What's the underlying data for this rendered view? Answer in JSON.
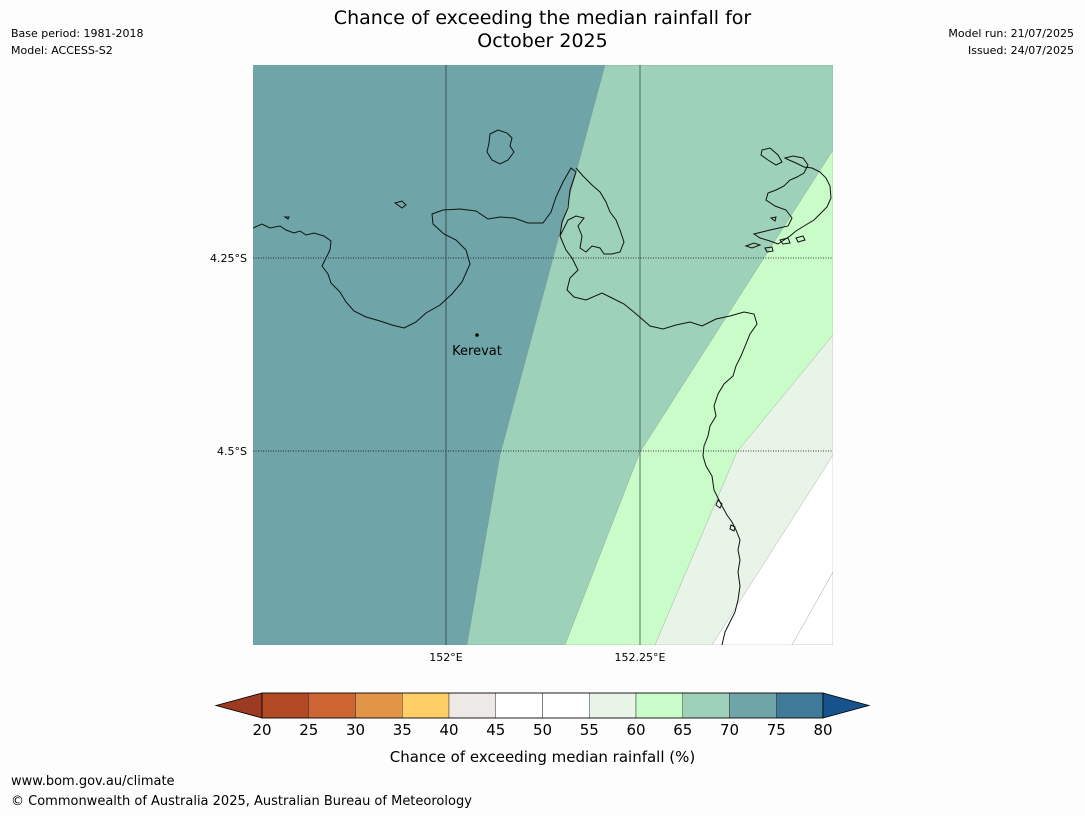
{
  "title": {
    "line1": "Chance of exceeding the median rainfall for",
    "line2": "October 2025"
  },
  "meta_left": {
    "base_period": "Base period: 1981-2018",
    "model": "Model: ACCESS-S2"
  },
  "meta_right": {
    "model_run": "Model run: 21/07/2025",
    "issued": "Issued: 24/07/2025"
  },
  "map": {
    "latitude_labels": [
      "4.25°S",
      "4.5°S"
    ],
    "longitude_labels": [
      "152°E",
      "152.25°E"
    ],
    "place": {
      "name": "Kerevat"
    },
    "zone_colors": {
      "70-75": "#6fa5a8",
      "65-70": "#9ed1ba",
      "60-65": "#c9fcc9",
      "55-60": "#e8f4e8",
      "50-55": "#ffffff"
    }
  },
  "colorbar": {
    "tick_labels": [
      "20",
      "25",
      "30",
      "35",
      "40",
      "45",
      "50",
      "55",
      "60",
      "65",
      "70",
      "75",
      "80"
    ],
    "segment_colors": [
      "#b34a26",
      "#cd6432",
      "#e39547",
      "#ffce67",
      "#ede9e6",
      "#ffffff",
      "#ffffff",
      "#e8f4e8",
      "#c9fcc9",
      "#9ed1ba",
      "#6fa5a8",
      "#417a99"
    ],
    "under_color": "#9c3a24",
    "over_color": "#16538c",
    "label": "Chance of exceeding median rainfall (%)"
  },
  "footer": {
    "url": "www.bom.gov.au/climate",
    "copyright": "© Commonwealth of Australia 2025, Australian Bureau of Meteorology"
  }
}
